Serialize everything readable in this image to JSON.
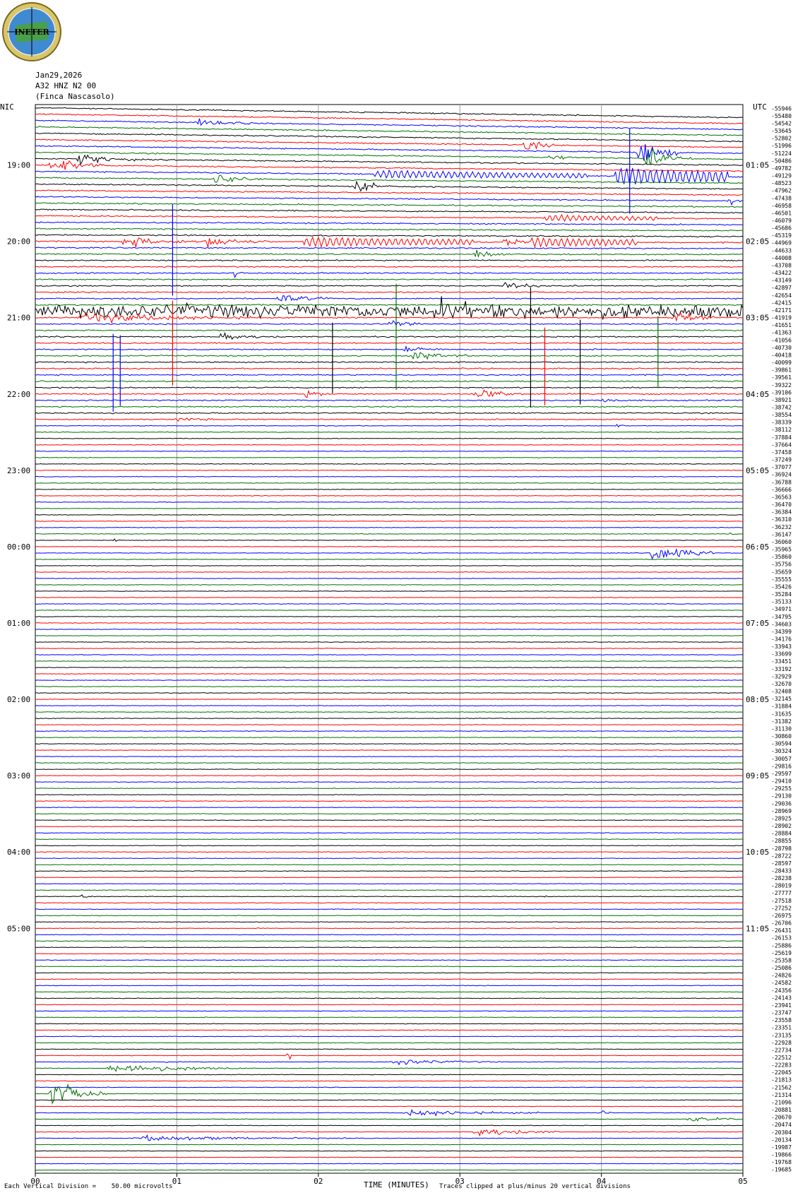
{
  "header": {
    "logo_text": "INETER",
    "date": "Jan29,2026",
    "channel": "A32 HNZ N2 00",
    "station": "(Finca Nascasolo)",
    "left_tz": "NIC",
    "right_tz": "UTC"
  },
  "footer": {
    "division_note": "Each Vertical Division =    50.00 microvolts",
    "xlabel": "TIME (MINUTES)",
    "clip_note": "Traces clipped at plus/minus 20 vertical divisions"
  },
  "colors": {
    "cycle": [
      "#000000",
      "#ff0000",
      "#0000ff",
      "#007000"
    ],
    "grid": "#a0a0a0"
  },
  "chart_data": {
    "type": "line",
    "subtype": "helicorder",
    "x_ticks": [
      "00",
      "01",
      "02",
      "03",
      "04",
      "05"
    ],
    "xlim": [
      0,
      5
    ],
    "trace_minutes": 5,
    "trace_count": 168,
    "left_hour_labels": [
      "19:00",
      "20:00",
      "21:00",
      "22:00",
      "23:00",
      "00:00",
      "01:00",
      "02:00",
      "03:00",
      "04:00",
      "05:00"
    ],
    "right_hour_labels": [
      "01:05",
      "02:05",
      "03:05",
      "04:05",
      "05:05",
      "06:05",
      "07:05",
      "08:05",
      "09:05",
      "10:05",
      "11:05"
    ],
    "right_counts": [
      "-55946",
      "-55480",
      "-54542",
      "-53645",
      "-52802",
      "-51996",
      "-51224",
      "-50486",
      "-49782",
      "-49129",
      "-48523",
      "-47962",
      "-47438",
      "-46958",
      "-46501",
      "-46079",
      "-45686",
      "-45319",
      "-44969",
      "-44633",
      "-44008",
      "-43708",
      "-43422",
      "-43149",
      "-42897",
      "-42654",
      "-42415",
      "-42171",
      "-41919",
      "-41651",
      "-41363",
      "-41056",
      "-40730",
      "-40418",
      "-40099",
      "-39861",
      "-39561",
      "-39322",
      "-39106",
      "-38921",
      "-38742",
      "-38554",
      "-38339",
      "-38112",
      "-37884",
      "-37664",
      "-37458",
      "-37249",
      "-37077",
      "-36924",
      "-36788",
      "-36666",
      "-36563",
      "-36470",
      "-36384",
      "-36310",
      "-36232",
      "-36147",
      "-36060",
      "-35965",
      "-35860",
      "-35756",
      "-35659",
      "-35555",
      "-35426",
      "-35284",
      "-35133",
      "-34971",
      "-34795",
      "-34603",
      "-34399",
      "-34176",
      "-33943",
      "-33699",
      "-33451",
      "-33192",
      "-32929",
      "-32670",
      "-32408",
      "-32145",
      "-31884",
      "-31635",
      "-31382",
      "-31130",
      "-30860",
      "-30594",
      "-30324",
      "-30057",
      "-29816",
      "-29597",
      "-29410",
      "-29255",
      "-29130",
      "-29036",
      "-28969",
      "-28925",
      "-28902",
      "-28884",
      "-28855",
      "-28798",
      "-28722",
      "-28597",
      "-28433",
      "-28238",
      "-28019",
      "-27777",
      "-27518",
      "-27252",
      "-26975",
      "-26706",
      "-26431",
      "-26153",
      "-25886",
      "-25619",
      "-25358",
      "-25086",
      "-24826",
      "-24582",
      "-24356",
      "-24143",
      "-23941",
      "-23747",
      "-23558",
      "-23351",
      "-23135",
      "-22928",
      "-22734",
      "-22512",
      "-22283",
      "-22045",
      "-21813",
      "-21562",
      "-21314",
      "-21096",
      "-20881",
      "-20670",
      "-20474",
      "-20304",
      "-20134",
      "-19987",
      "-19866",
      "-19768",
      "-19685"
    ],
    "events": [
      {
        "trace": 2,
        "minute": 1.1,
        "amp": 8,
        "dur": 0.45,
        "osc": false
      },
      {
        "trace": 5,
        "minute": 3.45,
        "amp": 16,
        "dur": 0.22,
        "osc": false
      },
      {
        "trace": 7,
        "minute": 3.62,
        "amp": 10,
        "dur": 0.2,
        "osc": false
      },
      {
        "trace": 6,
        "minute": 4.25,
        "amp": 36,
        "dur": 0.3,
        "osc": false
      },
      {
        "trace": 7,
        "minute": 4.3,
        "amp": 24,
        "dur": 0.35,
        "osc": false
      },
      {
        "trace": 8,
        "minute": 0.3,
        "amp": 14,
        "dur": 0.4,
        "osc": false
      },
      {
        "trace": 9,
        "minute": 0.1,
        "amp": 20,
        "dur": 0.45,
        "osc": false
      },
      {
        "trace": 10,
        "minute": 4.1,
        "amp": 22,
        "dur": 0.8,
        "osc": true
      },
      {
        "trace": 10,
        "minute": 2.4,
        "amp": 10,
        "dur": 1.5,
        "osc": true
      },
      {
        "trace": 11,
        "minute": 1.25,
        "amp": 14,
        "dur": 0.35,
        "osc": false
      },
      {
        "trace": 12,
        "minute": 2.25,
        "amp": 14,
        "dur": 0.3,
        "osc": false
      },
      {
        "trace": 14,
        "minute": 4.9,
        "amp": 12,
        "dur": 0.15,
        "osc": false
      },
      {
        "trace": 17,
        "minute": 3.6,
        "amp": 8,
        "dur": 0.8,
        "osc": true
      },
      {
        "trace": 21,
        "minute": 0.6,
        "amp": 12,
        "dur": 0.6,
        "osc": false
      },
      {
        "trace": 21,
        "minute": 1.2,
        "amp": 14,
        "dur": 0.45,
        "osc": false
      },
      {
        "trace": 21,
        "minute": 1.9,
        "amp": 12,
        "dur": 1.2,
        "osc": true
      },
      {
        "trace": 21,
        "minute": 3.3,
        "amp": 14,
        "dur": 0.25,
        "osc": false
      },
      {
        "trace": 21,
        "minute": 3.5,
        "amp": 12,
        "dur": 0.75,
        "osc": true
      },
      {
        "trace": 23,
        "minute": 3.1,
        "amp": 12,
        "dur": 0.25,
        "osc": false
      },
      {
        "trace": 26,
        "minute": 1.4,
        "amp": 10,
        "dur": 0.12,
        "osc": false
      },
      {
        "trace": 28,
        "minute": 3.3,
        "amp": 10,
        "dur": 0.3,
        "osc": false
      },
      {
        "trace": 30,
        "minute": 1.7,
        "amp": 10,
        "dur": 0.4,
        "osc": false
      },
      {
        "trace": 32,
        "minute": 0.0,
        "amp": 12,
        "dur": 5.0,
        "osc": false
      },
      {
        "trace": 32,
        "minute": 2.85,
        "amp": 18,
        "dur": 0.25,
        "osc": false
      },
      {
        "trace": 33,
        "minute": 0.3,
        "amp": 12,
        "dur": 1.3,
        "osc": false
      },
      {
        "trace": 33,
        "minute": 4.5,
        "amp": 14,
        "dur": 0.3,
        "osc": false
      },
      {
        "trace": 34,
        "minute": 2.5,
        "amp": 10,
        "dur": 0.3,
        "osc": false
      },
      {
        "trace": 36,
        "minute": 1.3,
        "amp": 7,
        "dur": 0.45,
        "osc": false
      },
      {
        "trace": 38,
        "minute": 2.6,
        "amp": 8,
        "dur": 0.3,
        "osc": false
      },
      {
        "trace": 39,
        "minute": 2.65,
        "amp": 10,
        "dur": 0.4,
        "osc": false
      },
      {
        "trace": 45,
        "minute": 3.1,
        "amp": 16,
        "dur": 0.35,
        "osc": false
      },
      {
        "trace": 45,
        "minute": 1.9,
        "amp": 8,
        "dur": 0.2,
        "osc": false
      },
      {
        "trace": 46,
        "minute": 4.0,
        "amp": 5,
        "dur": 0.2,
        "osc": false
      },
      {
        "trace": 49,
        "minute": 0.98,
        "amp": 5,
        "dur": 0.3,
        "osc": false
      },
      {
        "trace": 50,
        "minute": 4.1,
        "amp": 4,
        "dur": 0.1,
        "osc": false
      },
      {
        "trace": 68,
        "minute": 0.55,
        "amp": 6,
        "dur": 0.05,
        "osc": false
      },
      {
        "trace": 70,
        "minute": 4.35,
        "amp": 30,
        "dur": 0.45,
        "osc": false
      },
      {
        "trace": 67,
        "minute": 4.9,
        "amp": 10,
        "dur": 0.05,
        "osc": false
      },
      {
        "trace": 124,
        "minute": 0.32,
        "amp": 4,
        "dur": 0.1,
        "osc": false
      },
      {
        "trace": 124,
        "minute": 3.6,
        "amp": 4,
        "dur": 0.05,
        "osc": false
      },
      {
        "trace": 149,
        "minute": 1.78,
        "amp": 24,
        "dur": 0.04,
        "osc": false
      },
      {
        "trace": 150,
        "minute": 2.5,
        "amp": 6,
        "dur": 0.8,
        "osc": false
      },
      {
        "trace": 150,
        "minute": 0.9,
        "amp": 6,
        "dur": 0.1,
        "osc": false
      },
      {
        "trace": 151,
        "minute": 0.5,
        "amp": 12,
        "dur": 1.0,
        "osc": false
      },
      {
        "trace": 155,
        "minute": 0.1,
        "amp": 34,
        "dur": 0.4,
        "osc": false
      },
      {
        "trace": 158,
        "minute": 2.6,
        "amp": 8,
        "dur": 1.0,
        "osc": false
      },
      {
        "trace": 158,
        "minute": 4.0,
        "amp": 6,
        "dur": 0.1,
        "osc": false
      },
      {
        "trace": 159,
        "minute": 4.6,
        "amp": 6,
        "dur": 0.5,
        "osc": false
      },
      {
        "trace": 161,
        "minute": 3.1,
        "amp": 12,
        "dur": 0.6,
        "osc": false
      },
      {
        "trace": 162,
        "minute": 0.7,
        "amp": 6,
        "dur": 1.5,
        "osc": false
      }
    ],
    "spikes": [
      {
        "trace": 38,
        "minute": 0.55,
        "len": 110
      },
      {
        "trace": 38,
        "minute": 0.6,
        "len": 100
      },
      {
        "trace": 33,
        "minute": 0.97,
        "len": 120
      },
      {
        "trace": 36,
        "minute": 2.1,
        "len": 100
      },
      {
        "trace": 37,
        "minute": 3.6,
        "len": 110
      },
      {
        "trace": 36,
        "minute": 3.85,
        "len": 120
      },
      {
        "trace": 35,
        "minute": 4.4,
        "len": 100
      },
      {
        "trace": 31,
        "minute": 2.55,
        "len": 150
      },
      {
        "trace": 32,
        "minute": 3.5,
        "len": 170
      },
      {
        "trace": 18,
        "minute": 0.97,
        "len": 130
      },
      {
        "trace": 6,
        "minute": 4.2,
        "len": 120
      }
    ]
  }
}
